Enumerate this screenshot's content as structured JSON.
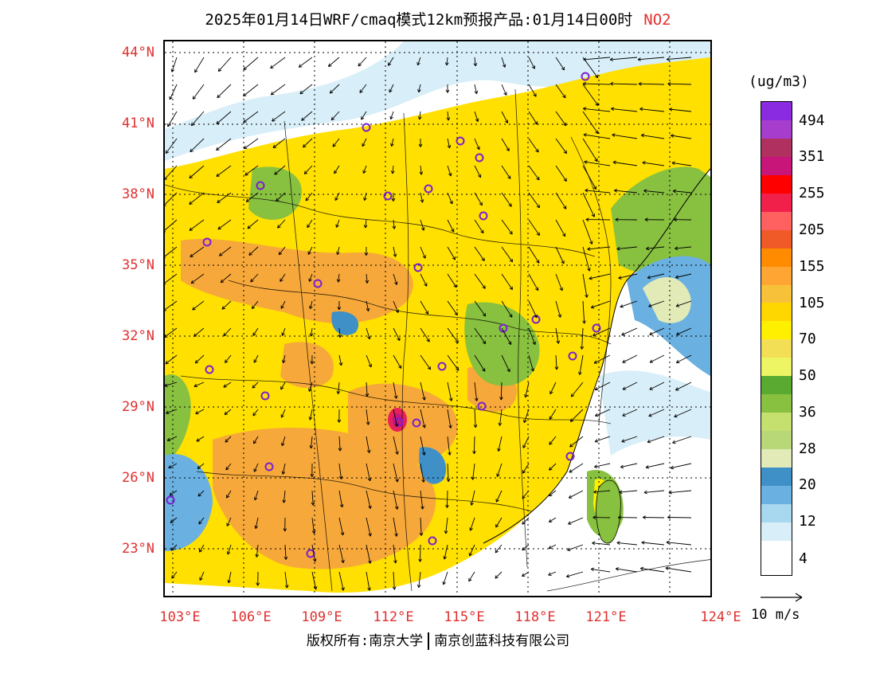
{
  "title": {
    "text": "2025年01月14日WRF/cmaq模式12km预报产品:01月14日00时",
    "pollutant": "NO2"
  },
  "lat_labels": [
    "44°N",
    "41°N",
    "38°N",
    "35°N",
    "32°N",
    "29°N",
    "26°N",
    "23°N"
  ],
  "lon_labels": [
    "103°E",
    "106°E",
    "109°E",
    "112°E",
    "115°E",
    "118°E",
    "121°E",
    "124°E"
  ],
  "legend": {
    "unit": "(ug/m3)",
    "colors": [
      "#8a2be2",
      "#a63dcc",
      "#b03060",
      "#c8157a",
      "#ff0000",
      "#f0204a",
      "#ff6060",
      "#f05a28",
      "#ff8c00",
      "#ffa533",
      "#f7c23a",
      "#ffd700",
      "#fff000",
      "#f3df55",
      "#eef565",
      "#5aaa32",
      "#88c040",
      "#c6e070",
      "#b8d878",
      "#e2ebb8",
      "#4090c8",
      "#6ab0e0",
      "#a8d8f0",
      "#d8eef8",
      "#ffffff"
    ],
    "ticks": [
      "494",
      "351",
      "255",
      "205",
      "155",
      "105",
      "70",
      "50",
      "36",
      "28",
      "20",
      "12",
      "4"
    ]
  },
  "wind": {
    "label": "10 m/s"
  },
  "footer": {
    "left": "版权所有:南京大学",
    "right": "南京创蓝科技有限公司"
  }
}
